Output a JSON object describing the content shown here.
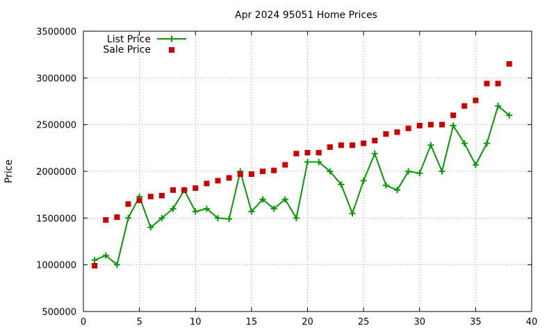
{
  "chart_data": {
    "type": "line",
    "title": "Apr 2024 95051 Home Prices",
    "xlabel": "",
    "ylabel": "Price",
    "xlim": [
      0,
      40
    ],
    "ylim": [
      500000,
      3500000
    ],
    "xticks": [
      0,
      5,
      10,
      15,
      20,
      25,
      30,
      35,
      40
    ],
    "yticks": [
      500000,
      1000000,
      1500000,
      2000000,
      2500000,
      3000000,
      3500000
    ],
    "grid": true,
    "legend_position": "top-left",
    "x": [
      1,
      2,
      3,
      4,
      5,
      6,
      7,
      8,
      9,
      10,
      11,
      12,
      13,
      14,
      15,
      16,
      17,
      18,
      19,
      20,
      21,
      22,
      23,
      24,
      25,
      26,
      27,
      28,
      29,
      30,
      31,
      32,
      33,
      34,
      35,
      36,
      37,
      38
    ],
    "series": [
      {
        "name": "List Price",
        "style": "linespoints",
        "color": "#009900",
        "marker": "plus",
        "values": [
          1050000,
          1100000,
          1000000,
          1500000,
          1730000,
          1400000,
          1500000,
          1600000,
          1800000,
          1570000,
          1600000,
          1500000,
          1490000,
          2000000,
          1570000,
          1700000,
          1600000,
          1700000,
          1500000,
          2100000,
          2100000,
          2000000,
          1860000,
          1550000,
          1900000,
          2190000,
          1850000,
          1800000,
          2000000,
          1980000,
          2280000,
          2000000,
          2490000,
          2300000,
          2070000,
          2300000,
          2700000,
          2600000
        ]
      },
      {
        "name": "Sale Price",
        "style": "points",
        "color": "#cc0000",
        "marker": "square",
        "values": [
          990000,
          1480000,
          1510000,
          1650000,
          1690000,
          1730000,
          1740000,
          1800000,
          1800000,
          1820000,
          1870000,
          1900000,
          1930000,
          1970000,
          1970000,
          2000000,
          2010000,
          2070000,
          2190000,
          2200000,
          2200000,
          2260000,
          2280000,
          2280000,
          2300000,
          2330000,
          2400000,
          2420000,
          2460000,
          2490000,
          2500000,
          2500000,
          2600000,
          2700000,
          2760000,
          2940000,
          2940000,
          3150000
        ]
      }
    ]
  }
}
